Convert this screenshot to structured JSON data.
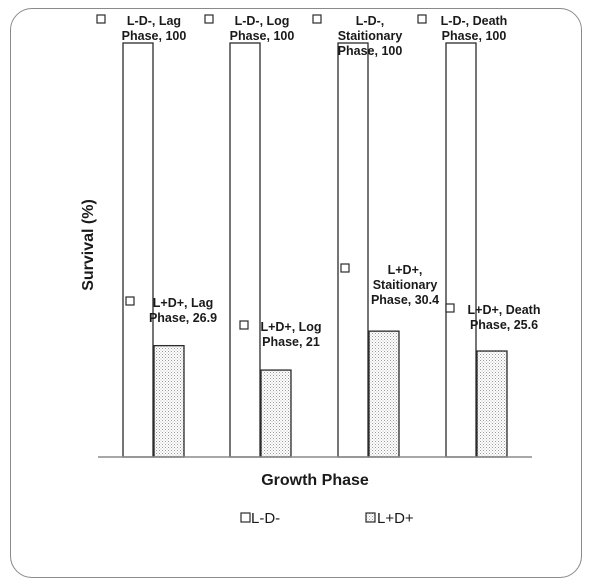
{
  "chart_data": {
    "type": "bar",
    "title": "",
    "xlabel": "Growth Phase",
    "ylabel": "Survival (%)",
    "categories": [
      "Lag Phase",
      "Log Phase",
      "Staitionary Phase",
      "Death Phase"
    ],
    "ylim": [
      0,
      100
    ],
    "grid": false,
    "legend_position": "bottom",
    "series": [
      {
        "name": "L-D-",
        "values": [
          100,
          100,
          100,
          100
        ],
        "fill": "#ffffff",
        "data_labels": [
          [
            "L-D-, Lag",
            "Phase, 100"
          ],
          [
            "L-D-, Log",
            "Phase, 100"
          ],
          [
            "L-D-,",
            "Staitionary",
            "Phase, 100"
          ],
          [
            "L-D-, Death",
            "Phase, 100"
          ]
        ]
      },
      {
        "name": "L+D+",
        "values": [
          26.9,
          21,
          30.4,
          25.6
        ],
        "fill": "dotted",
        "data_labels": [
          [
            "L+D+, Lag",
            "Phase, 26.9"
          ],
          [
            "L+D+, Log",
            "Phase, 21"
          ],
          [
            "L+D+,",
            "Staitionary",
            "Phase, 30.4"
          ],
          [
            "L+D+, Death",
            "Phase, 25.6"
          ]
        ]
      }
    ]
  },
  "colors": {
    "bar_stroke": "#2b2b2b",
    "axis": "#8c8c8c",
    "frame": "#8a8a8a",
    "dot": "#9a9a9a"
  }
}
